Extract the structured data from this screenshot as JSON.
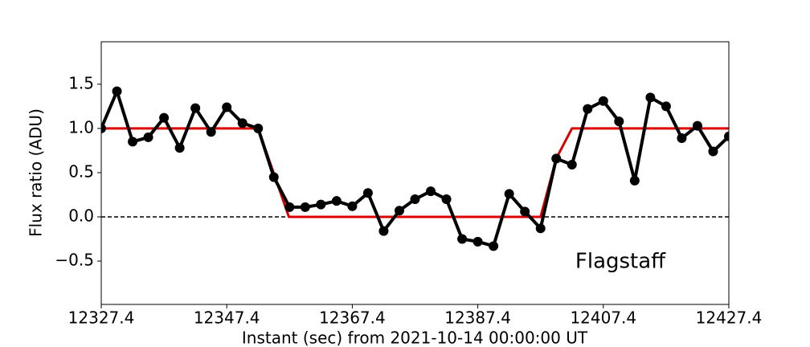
{
  "chart_data": {
    "type": "line",
    "xlabel": "Instant (sec) from 2021-10-14 00:00:00 UT",
    "ylabel": "Flux ratio (ADU)",
    "annotation": "Flagstaff",
    "xlim": [
      12327.4,
      12427.4
    ],
    "ylim": [
      -0.99,
      1.98
    ],
    "xticks": [
      12327.4,
      12347.4,
      12367.4,
      12387.4,
      12407.4,
      12427.4
    ],
    "yticks": [
      {
        "value": -0.5,
        "label": "−0.5"
      },
      {
        "value": 0,
        "label": "0.0"
      },
      0.5,
      {
        "value": 1,
        "label": "1.0"
      },
      1.5
    ],
    "hline": 0,
    "series": [
      {
        "color": "#000000",
        "markers": true,
        "x": [
          12327.4,
          12329.9,
          12332.4,
          12334.9,
          12337.4,
          12339.9,
          12342.4,
          12344.9,
          12347.4,
          12349.9,
          12352.4,
          12354.9,
          12357.4,
          12359.9,
          12362.4,
          12364.9,
          12367.4,
          12369.9,
          12372.4,
          12374.9,
          12377.4,
          12379.9,
          12382.4,
          12384.9,
          12387.4,
          12389.9,
          12392.4,
          12394.9,
          12397.4,
          12399.9,
          12402.4,
          12404.9,
          12407.4,
          12409.9,
          12412.4,
          12414.9,
          12417.4,
          12419.9,
          12422.4,
          12424.9,
          12427.4
        ],
        "values": [
          1.0,
          1.42,
          0.85,
          0.9,
          1.12,
          0.78,
          1.23,
          0.96,
          1.24,
          1.06,
          1.0,
          0.45,
          0.11,
          0.11,
          0.14,
          0.18,
          0.12,
          0.27,
          -0.16,
          0.07,
          0.2,
          0.29,
          0.2,
          -0.25,
          -0.28,
          -0.33,
          0.26,
          0.06,
          -0.13,
          0.66,
          0.59,
          1.22,
          1.31,
          1.08,
          0.41,
          1.35,
          1.25,
          0.89,
          1.03,
          0.74,
          0.91
        ]
      },
      {
        "color": "#dd0000",
        "markers": false,
        "x": [
          12327.4,
          12352.4,
          12357.3,
          12397.4,
          12399.9,
          12402.4,
          12427.4
        ],
        "values": [
          1,
          1,
          0,
          0,
          0.66,
          1,
          1
        ]
      }
    ]
  }
}
